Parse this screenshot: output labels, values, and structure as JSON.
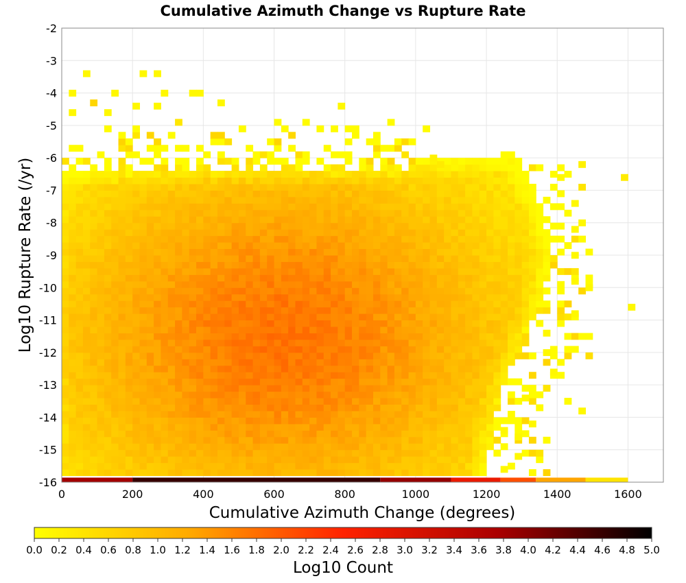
{
  "chart_data": {
    "type": "heatmap",
    "title": "Cumulative Azimuth Change vs Rupture Rate",
    "xlabel": "Cumulative Azimuth Change (degrees)",
    "ylabel": "Log10 Rupture Rate (/yr)",
    "xlim": [
      0,
      1700
    ],
    "ylim": [
      -16,
      -2
    ],
    "x_ticks": [
      "0",
      "200",
      "400",
      "600",
      "800",
      "1000",
      "1200",
      "1400",
      "1600"
    ],
    "y_ticks": [
      "-2",
      "-3",
      "-4",
      "-5",
      "-6",
      "-7",
      "-8",
      "-9",
      "-10",
      "-11",
      "-12",
      "-13",
      "-14",
      "-15",
      "-16"
    ],
    "grid": true,
    "bin_width_x": 20,
    "bin_height_y": 0.2,
    "colorbar": {
      "label": "Log10 Count",
      "range": [
        0,
        5
      ],
      "ticks": [
        "0.0",
        "0.2",
        "0.4",
        "0.6",
        "0.8",
        "1.0",
        "1.2",
        "1.4",
        "1.6",
        "1.8",
        "2.0",
        "2.2",
        "2.4",
        "2.6",
        "2.8",
        "3.0",
        "3.2",
        "3.4",
        "3.6",
        "3.8",
        "4.0",
        "4.2",
        "4.4",
        "4.6",
        "4.8",
        "5.0"
      ],
      "colors": [
        "#ffff00",
        "#ffaa00",
        "#ff2200",
        "#aa0000",
        "#000000"
      ]
    },
    "density": {
      "peak_x": 620,
      "peak_y": -11.5,
      "peak_value": 1.75,
      "x_spread": 700,
      "y_spread": 6,
      "bulk_right_edge_x": 1200,
      "top_edge_y": -6.2
    },
    "bottom_row": {
      "y": -16,
      "segments": [
        {
          "x_from": 0,
          "x_to": 200,
          "value": 3.8
        },
        {
          "x_from": 200,
          "x_to": 900,
          "value": 4.6
        },
        {
          "x_from": 900,
          "x_to": 1100,
          "value": 3.9
        },
        {
          "x_from": 1100,
          "x_to": 1240,
          "value": 2.8
        },
        {
          "x_from": 1240,
          "x_to": 1340,
          "value": 2.1
        },
        {
          "x_from": 1340,
          "x_to": 1480,
          "value": 1.3
        },
        {
          "x_from": 1480,
          "x_to": 1600,
          "value": 0.4
        }
      ]
    },
    "outliers": [
      {
        "x": 70,
        "y": -3.4,
        "value": 0.1
      },
      {
        "x": 230,
        "y": -3.4,
        "value": 0.1
      },
      {
        "x": 270,
        "y": -3.4,
        "value": 0.1
      },
      {
        "x": 30,
        "y": -4.0,
        "value": 0.1
      },
      {
        "x": 150,
        "y": -4.0,
        "value": 0.1
      },
      {
        "x": 290,
        "y": -4.0,
        "value": 0.1
      },
      {
        "x": 370,
        "y": -4.0,
        "value": 0.1
      },
      {
        "x": 390,
        "y": -4.0,
        "value": 0.1
      },
      {
        "x": 90,
        "y": -4.3,
        "value": 0.6
      },
      {
        "x": 210,
        "y": -4.4,
        "value": 0.1
      },
      {
        "x": 270,
        "y": -4.4,
        "value": 0.1
      },
      {
        "x": 450,
        "y": -4.3,
        "value": 0.1
      },
      {
        "x": 790,
        "y": -4.4,
        "value": 0.1
      },
      {
        "x": 30,
        "y": -4.6,
        "value": 0.1
      },
      {
        "x": 130,
        "y": -4.6,
        "value": 0.1
      },
      {
        "x": 1050,
        "y": -6.0,
        "value": 0.2
      },
      {
        "x": 1070,
        "y": -6.2,
        "value": 0.3
      },
      {
        "x": 1410,
        "y": -6.6,
        "value": 0.1
      },
      {
        "x": 1470,
        "y": -6.2,
        "value": 0.2
      },
      {
        "x": 1590,
        "y": -6.6,
        "value": 0.3
      },
      {
        "x": 1450,
        "y": -7.4,
        "value": 0.1
      },
      {
        "x": 1450,
        "y": -8.2,
        "value": 0.1
      },
      {
        "x": 1470,
        "y": -8.0,
        "value": 0.1
      },
      {
        "x": 1450,
        "y": -9.0,
        "value": 0.1
      },
      {
        "x": 1450,
        "y": -9.8,
        "value": 0.1
      },
      {
        "x": 1490,
        "y": -10.0,
        "value": 0.1
      },
      {
        "x": 1610,
        "y": -10.6,
        "value": 0.1
      },
      {
        "x": 1450,
        "y": -10.8,
        "value": 0.1
      },
      {
        "x": 1470,
        "y": -13.8,
        "value": 0.1
      },
      {
        "x": 1330,
        "y": -14.2,
        "value": 0.1
      },
      {
        "x": 1370,
        "y": -11.4,
        "value": 0.1
      },
      {
        "x": 1370,
        "y": -12.0,
        "value": 0.1
      },
      {
        "x": 1310,
        "y": -13.4,
        "value": 0.1
      },
      {
        "x": 1290,
        "y": -14.6,
        "value": 0.1
      },
      {
        "x": 1250,
        "y": -15.6,
        "value": 0.1
      },
      {
        "x": 1290,
        "y": -15.2,
        "value": 0.1
      },
      {
        "x": 1250,
        "y": -14.4,
        "value": 0.1
      },
      {
        "x": 1390,
        "y": -12.6,
        "value": 0.1
      }
    ]
  }
}
